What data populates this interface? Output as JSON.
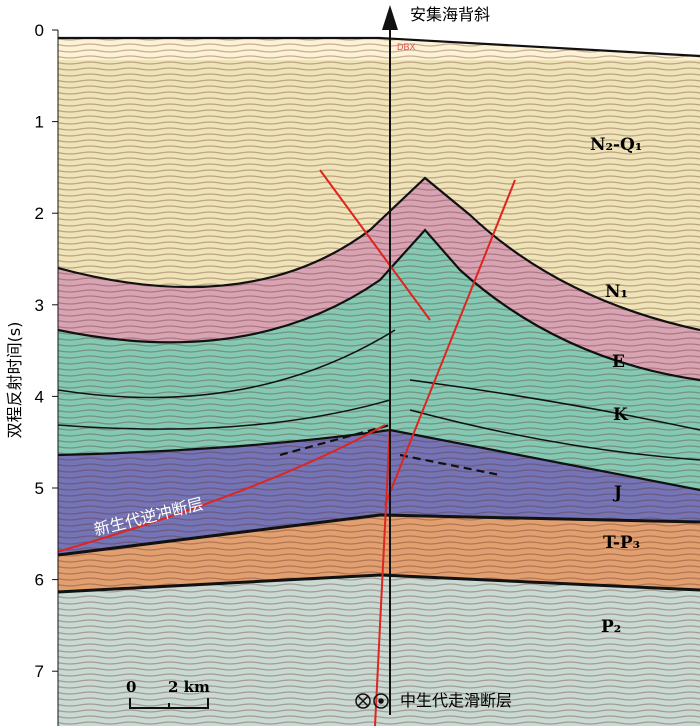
{
  "figure": {
    "title": "安集海背斜",
    "y_axis_label": "双程反射时间(s)",
    "y_ticks": [
      0,
      1,
      2,
      3,
      4,
      5,
      6,
      7
    ],
    "well_label": "DBX",
    "layers": [
      "N₂-Q₁",
      "N₁",
      "E",
      "K",
      "J",
      "T-P₃",
      "P₂"
    ],
    "thrust_fault_label": "新生代逆冲断层",
    "strike_slip_fault_label": "中生代走滑断层",
    "scale_bar": {
      "start": "0",
      "end": "2 km"
    }
  }
}
